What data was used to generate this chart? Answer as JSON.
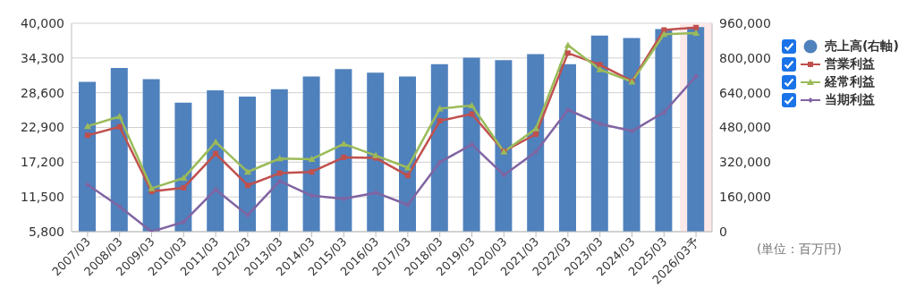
{
  "chart_data": {
    "type": "bar",
    "categories": [
      "2007/03",
      "2008/03",
      "2009/03",
      "2010/03",
      "2011/03",
      "2012/03",
      "2013/03",
      "2014/03",
      "2015/03",
      "2016/03",
      "2017/03",
      "2018/03",
      "2019/03",
      "2020/03",
      "2021/03",
      "2022/03",
      "2023/03",
      "2024/03",
      "2025/03",
      "2026/03予"
    ],
    "series": [
      {
        "name": "売上高(右軸)",
        "axis": "y2",
        "color": "#4f81bd",
        "values": [
          690000,
          754000,
          702000,
          594000,
          651000,
          622000,
          656000,
          715000,
          749000,
          732000,
          715000,
          771000,
          801000,
          790000,
          818000,
          771000,
          903000,
          892000,
          933000,
          943000
        ]
      },
      {
        "name": "営業利益",
        "type": "line",
        "marker": "square",
        "color": "#c0504d",
        "values": [
          21600,
          23000,
          12400,
          13000,
          18600,
          13400,
          15400,
          15600,
          18000,
          17900,
          15000,
          24000,
          25100,
          19000,
          21800,
          35100,
          33200,
          30500,
          38900,
          39300
        ]
      },
      {
        "name": "経常利益",
        "type": "line",
        "marker": "triangle",
        "color": "#9bbb59",
        "values": [
          23100,
          24700,
          12900,
          14600,
          20500,
          15600,
          17800,
          17700,
          20200,
          18300,
          16300,
          26000,
          26500,
          18900,
          22700,
          36400,
          32400,
          30400,
          38200,
          38400
        ]
      },
      {
        "name": "当期利益",
        "type": "line",
        "marker": "diamond",
        "color": "#8064a2",
        "values": [
          13500,
          9900,
          5800,
          7400,
          12700,
          8500,
          14100,
          11700,
          11200,
          12200,
          10200,
          17200,
          20100,
          15100,
          18900,
          25800,
          23500,
          22300,
          25400,
          31300
        ]
      }
    ],
    "ylim": [
      5800,
      40000
    ],
    "yticks": [
      {
        "value": 5800,
        "label": "5,800"
      },
      {
        "value": 11500,
        "label": "11,500"
      },
      {
        "value": 17200,
        "label": "17,200"
      },
      {
        "value": 22900,
        "label": "22,900"
      },
      {
        "value": 28600,
        "label": "28,600"
      },
      {
        "value": 34300,
        "label": "34,300"
      },
      {
        "value": 40000,
        "label": "40,000"
      }
    ],
    "y2lim": [
      0,
      960000
    ],
    "y2ticks": [
      0,
      {
        "value": 160000,
        "label": "160,000"
      },
      {
        "value": 320000,
        "label": "320,000"
      },
      {
        "value": 480000,
        "label": "480,000"
      },
      {
        "value": 640000,
        "label": "640,000"
      },
      {
        "value": 800000,
        "label": "800,000"
      },
      {
        "value": 960000,
        "label": "960,000"
      }
    ],
    "grid": "y",
    "legend": "right",
    "bands": [
      {
        "axis": "x",
        "from": "2026/03予",
        "to": "2026/03予",
        "color": "#fde9e9"
      }
    ],
    "annotations": [
      "(単位：百万円)"
    ]
  }
}
